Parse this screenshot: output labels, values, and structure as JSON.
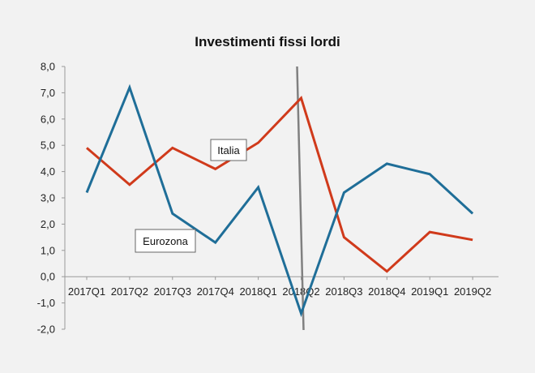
{
  "chart_data": {
    "type": "line",
    "title": "Investimenti fissi lordi",
    "xlabel": "",
    "ylabel": "",
    "categories": [
      "2017Q1",
      "2017Q2",
      "2017Q3",
      "2017Q4",
      "2018Q1",
      "2018Q2",
      "2018Q3",
      "2018Q4",
      "2019Q1",
      "2019Q2"
    ],
    "ylim": [
      -2.0,
      8.0
    ],
    "yticks": [
      "8,0",
      "7,0",
      "6,0",
      "5,0",
      "4,0",
      "3,0",
      "2,0",
      "1,0",
      "0,0",
      "-1,0",
      "-2,0"
    ],
    "grid": false,
    "series": [
      {
        "name": "Italia",
        "color": "#d03a1b",
        "values": [
          4.9,
          3.5,
          4.9,
          4.1,
          5.1,
          6.8,
          1.5,
          0.2,
          1.7,
          1.4
        ]
      },
      {
        "name": "Eurozona",
        "color": "#1f6e98",
        "values": [
          3.2,
          7.2,
          2.4,
          1.3,
          3.4,
          -1.4,
          3.2,
          4.3,
          3.9,
          2.4
        ]
      }
    ],
    "annotations": {
      "italia_label": "Italia",
      "eurozona_label": "Eurozona",
      "vertical_marker_category": "2018Q2",
      "vertical_marker_color": "#808080"
    }
  }
}
